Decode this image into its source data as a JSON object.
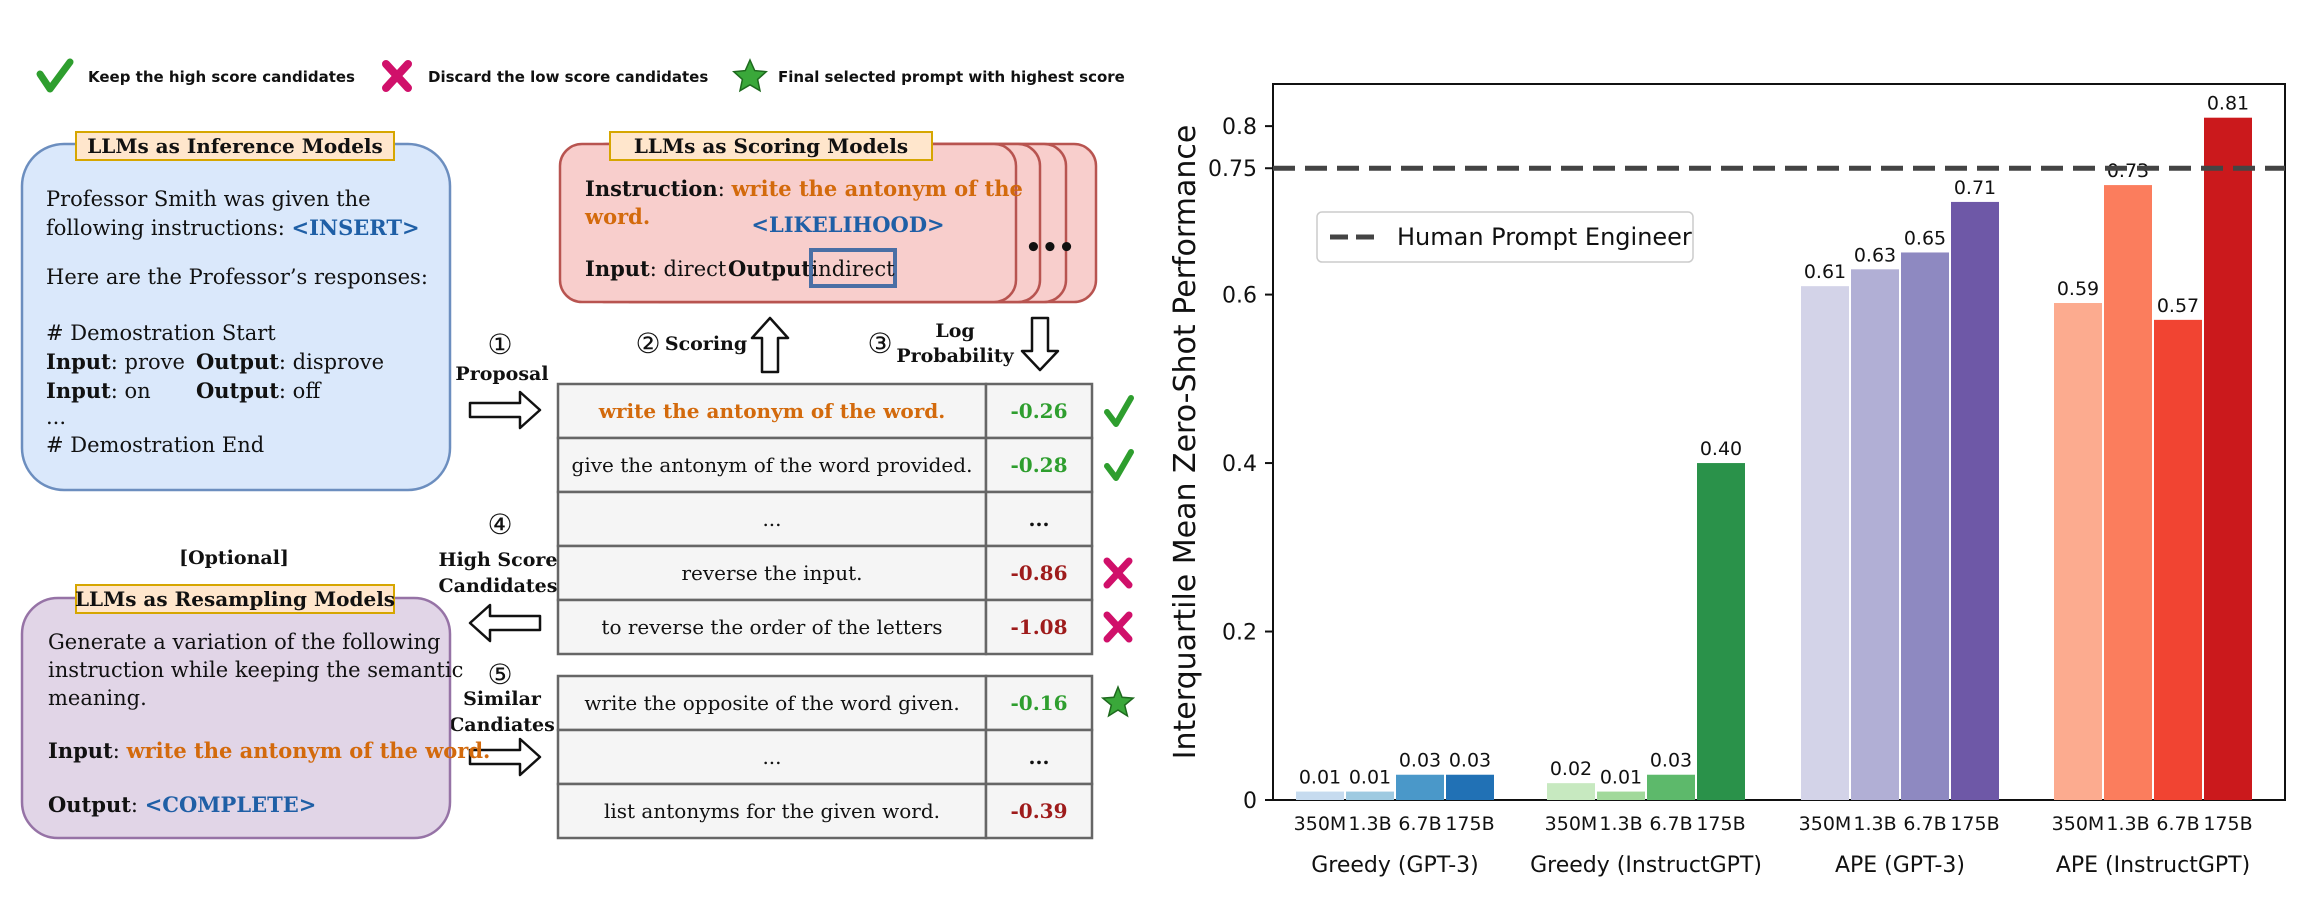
{
  "legend": {
    "keep": "Keep the high score candidates",
    "discard": "Discard the low score candidates",
    "final": "Final selected prompt with highest score",
    "icons": [
      "checkmark-icon",
      "cross-icon",
      "star-icon"
    ]
  },
  "inference": {
    "title": "LLMs as Inference Models",
    "line1": "Professor Smith was given the",
    "line2_prefix": "following instructions: ",
    "insert_tag": "<INSERT>",
    "responses": "Here are the Professor’s responses:",
    "demo_start": "# Demostration Start",
    "pairs": [
      {
        "input_label": "Input",
        "input_value": ": prove",
        "output_label": "Output",
        "output_value": ": disprove"
      },
      {
        "input_label": "Input",
        "input_value": ": on",
        "output_label": "Output",
        "output_value": ": off"
      }
    ],
    "ellipsis": "...",
    "demo_end": "# Demostration End"
  },
  "scoring": {
    "title": "LLMs as Scoring Models",
    "instruction_label": "Instruction",
    "instruction_colon": ": ",
    "instruction_line1": "write the antonym of the",
    "instruction_line2": "word.",
    "likelihood_tag": "<LIKELIHOOD>",
    "input_label": "Input",
    "input_value": ": direct",
    "output_label": "Output",
    "output_colon": ":",
    "output_value": "indirect",
    "more": "•••"
  },
  "steps": {
    "proposal": {
      "num": "①",
      "label": "Proposal"
    },
    "scoring": {
      "num": "②",
      "label": "Scoring"
    },
    "log_prob": {
      "num": "③",
      "label_line1": "Log",
      "label_line2": "Probability"
    },
    "high_score": {
      "num": "④",
      "label_line1": "High Score",
      "label_line2": "Candidates"
    },
    "similar": {
      "num": "⑤",
      "label_line1": "Similar",
      "label_line2": "Candiates"
    }
  },
  "candidates": [
    {
      "text": "write the antonym of the word.",
      "score": "-0.26",
      "mark": "check"
    },
    {
      "text": "give the antonym of the word provided.",
      "score": "-0.28",
      "mark": "check"
    },
    {
      "text": "...",
      "score": "...",
      "mark": ""
    },
    {
      "text": "reverse the input.",
      "score": "-0.86",
      "mark": "cross"
    },
    {
      "text": "to reverse the order of the letters",
      "score": "-1.08",
      "mark": "cross"
    }
  ],
  "similar_candidates": [
    {
      "text": "write the opposite of the word given.",
      "score": "-0.16",
      "mark": "star"
    },
    {
      "text": "...",
      "score": "...",
      "mark": ""
    },
    {
      "text": "list antonyms for the given word.",
      "score": "-0.39",
      "mark": ""
    }
  ],
  "resampling": {
    "optional": "[Optional]",
    "title": "LLMs as Resampling Models",
    "line1": "Generate a variation of the following",
    "line2": "instruction while keeping the semantic",
    "line3": "meaning.",
    "input_label": "Input",
    "input_colon": ": ",
    "input_value": "write the antonym of the word.",
    "output_label": "Output",
    "output_colon": ": ",
    "output_tag": "<COMPLETE>"
  },
  "colors": {
    "orange": "#d36a0c",
    "blue": "#1f5fa6",
    "green": "#2e9e2e",
    "red": "#9e1b1b",
    "magenta": "#d0106a",
    "inference_fill": "#dae8fb",
    "inference_stroke": "#6c8ebf",
    "scoring_fill": "#f8cecc",
    "scoring_stroke": "#b85450",
    "resampling_fill": "#e1d5e7",
    "resampling_stroke": "#9673a6",
    "title_fill": "#ffe6cc",
    "title_stroke": "#d6a600",
    "table_fill": "#f5f5f5",
    "table_stroke": "#666666"
  },
  "chart_data": {
    "type": "bar",
    "title": "",
    "xlabel": "",
    "ylabel": "Interquartile Mean Zero-Shot Performance",
    "ylim": [
      0,
      0.85
    ],
    "yticks": [
      0,
      0.2,
      0.4,
      0.6,
      0.75,
      0.8
    ],
    "ytick_labels": [
      "0",
      "0.2",
      "0.4",
      "0.6",
      "0.75",
      "0.8"
    ],
    "grid": false,
    "groups": [
      {
        "name": "Greedy (GPT-3)",
        "sizes": [
          "350M",
          "1.3B",
          "6.7B",
          "175B"
        ],
        "values": [
          0.01,
          0.01,
          0.03,
          0.03
        ],
        "labels": [
          "0.01",
          "0.01",
          "0.03",
          "0.03"
        ],
        "colors": [
          "#c6dbef",
          "#9ecae1",
          "#4a98c9",
          "#2171b5"
        ]
      },
      {
        "name": "Greedy (InstructGPT)",
        "sizes": [
          "350M",
          "1.3B",
          "6.7B",
          "175B"
        ],
        "values": [
          0.02,
          0.01,
          0.03,
          0.4
        ],
        "labels": [
          "0.02",
          "0.01",
          "0.03",
          "0.40"
        ],
        "colors": [
          "#c7e9c0",
          "#a1d99b",
          "#5db96b",
          "#2a924a"
        ]
      },
      {
        "name": "APE (GPT-3)",
        "sizes": [
          "350M",
          "1.3B",
          "6.7B",
          "175B"
        ],
        "values": [
          0.61,
          0.63,
          0.65,
          0.71
        ],
        "labels": [
          "0.61",
          "0.63",
          "0.65",
          "0.71"
        ],
        "colors": [
          "#d3d3e8",
          "#b1afd5",
          "#8e89c1",
          "#6e58a7"
        ]
      },
      {
        "name": "APE (InstructGPT)",
        "sizes": [
          "350M",
          "1.3B",
          "6.7B",
          "175B"
        ],
        "values": [
          0.59,
          0.73,
          0.57,
          0.81
        ],
        "labels": [
          "0.59",
          "0.73",
          "0.57",
          "0.81"
        ],
        "colors": [
          "#fcab8f",
          "#fb7d5d",
          "#f14432",
          "#cb191c"
        ]
      }
    ],
    "reference_line": {
      "value": 0.75,
      "label": "Human Prompt Engineer",
      "style": "dashed",
      "color": "#444444"
    },
    "legend_placement": "upper-left"
  }
}
